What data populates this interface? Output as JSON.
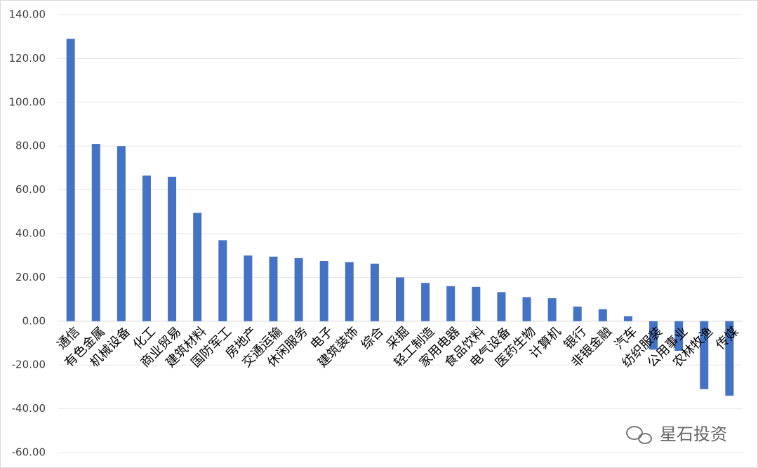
{
  "chart_data": {
    "type": "bar",
    "categories": [
      "通信",
      "有色金属",
      "机械设备",
      "化工",
      "商业贸易",
      "建筑材料",
      "国防军工",
      "房地产",
      "交通运输",
      "休闲服务",
      "电子",
      "建筑装饰",
      "综合",
      "采掘",
      "轻工制造",
      "家用电器",
      "食品饮料",
      "电气设备",
      "医药生物",
      "计算机",
      "银行",
      "非银金融",
      "汽车",
      "纺织服装",
      "公用事业",
      "农林牧渔",
      "传媒"
    ],
    "values": [
      129,
      81,
      80,
      66.5,
      66,
      49.5,
      37,
      30,
      29.5,
      28.8,
      27.5,
      27,
      26.3,
      20,
      17.5,
      16,
      15.7,
      13.3,
      11,
      10.5,
      6.7,
      5.5,
      2.3,
      -13,
      -13.5,
      -31,
      -34
    ],
    "color": "#4472c4",
    "ylim": [
      -60,
      140
    ],
    "yticks": [
      {
        "value": -60,
        "label": "-60.00"
      },
      {
        "value": -40,
        "label": "-40.00"
      },
      {
        "value": -20,
        "label": "-20.00"
      },
      {
        "value": 0,
        "label": "0.00"
      },
      {
        "value": 20,
        "label": "20.00"
      },
      {
        "value": 40,
        "label": "40.00"
      },
      {
        "value": 60,
        "label": "60.00"
      },
      {
        "value": 80,
        "label": "80.00"
      },
      {
        "value": 100,
        "label": "100.00"
      },
      {
        "value": 120,
        "label": "120.00"
      },
      {
        "value": 140,
        "label": "140.00"
      }
    ],
    "grid": true,
    "watermark": "星石投资"
  }
}
